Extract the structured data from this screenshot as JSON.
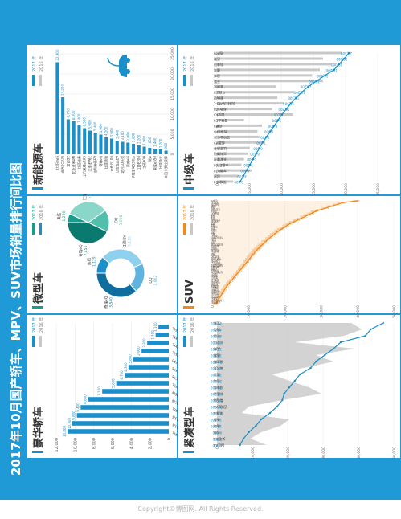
{
  "page": {
    "title": "2017年10月国产轿车、MPV、SUV市场销量排行间比图",
    "copyright": "Copyright©博图网. All Rights Reserved.",
    "year_current": "2017 年",
    "year_prev": "2016 年"
  },
  "colors": {
    "banner": "#1f9ad6",
    "blue": "#1b8fc9",
    "blue_light": "#8fd0ef",
    "orange": "#f18a1f",
    "gray": "#c8c8c8",
    "teal": "#159e8f",
    "teal_light": "#8ad6c8"
  },
  "chart_data": [
    {
      "id": "luxury",
      "title": "豪华轿车",
      "type": "bar",
      "ylim": [
        0,
        12000
      ],
      "ticks": [
        0,
        2000,
        4000,
        6000,
        8000,
        10000,
        12000
      ],
      "categories": [
        "奥迪A4L",
        "宝马5系",
        "宝马3系",
        "奥迪A6L",
        "奔驰C级",
        "奔驰E级",
        "凯迪拉克ATSL",
        "凯迪拉克CT6",
        "凯迪拉克XTS",
        "沃尔沃S90",
        "英菲尼迪Q50L",
        "捷豹XFL",
        "捷豹XEL",
        "沃尔沃S60L"
      ],
      "series": [
        {
          "name": "2017 年",
          "values": [
            10800,
            10300,
            9800,
            9400,
            8600,
            7100,
            5600,
            4700,
            4300,
            3800,
            2900,
            2300,
            1400,
            1100
          ]
        }
      ]
    },
    {
      "id": "micro",
      "title": "微型车",
      "type": "pie",
      "legend": [
        "2017 年",
        "2016 年"
      ],
      "series": [
        {
          "name": "2017 年",
          "slices": [
            {
              "label": "奥拓",
              "value": 1129
            },
            {
              "label": "江淮iEV",
              "value": 3119
            },
            {
              "label": "QQ",
              "value": 1962
            },
            {
              "label": "奇瑞eQ",
              "value": 3540
            }
          ]
        },
        {
          "name": "2016 年",
          "slices": [
            {
              "label": "奥拓",
              "value": 1226
            },
            {
              "label": "江淮iEV",
              "value": 5779
            },
            {
              "label": "QQ",
              "value": 3006
            },
            {
              "label": "奇瑞eQ",
              "value": 7451
            }
          ]
        }
      ]
    },
    {
      "id": "nev",
      "title": "新能源车",
      "type": "bar",
      "xlim": [
        0,
        25000
      ],
      "ticks": [
        0,
        5000,
        10000,
        15000,
        20000,
        25000
      ],
      "categories": [
        "比亚迪e5",
        "北汽EC系列",
        "知豆D2",
        "比亚迪宋DM",
        "比亚迪秦",
        "上汽荣威eRX5",
        "江淮iEV6E",
        "吉利帝豪EV",
        "奇瑞eQ",
        "比亚迪唐",
        "众泰云100",
        "长安逸动EV",
        "北汽EU系列",
        "荣威ei6",
        "华晨宝马530Le",
        "江铃E200",
        "之诺60H",
        "腾势",
        "荣威e550",
        "比亚迪元",
        "丰田卡罗拉双擎"
      ],
      "series": [
        {
          "name": "2017 年",
          "values": [
            22900,
            14200,
            8700,
            8200,
            7400,
            6500,
            5900,
            5400,
            4900,
            4200,
            3900,
            3400,
            3100,
            2900,
            2600,
            2200,
            1900,
            1600,
            1400,
            1200,
            900
          ]
        }
      ]
    },
    {
      "id": "compact",
      "title": "紧凑型车",
      "type": "line",
      "ylim": [
        0,
        50000
      ],
      "ticks": [
        0,
        10000,
        20000,
        30000,
        40000,
        50000
      ],
      "categories": [
        "宝来",
        "朗逸",
        "轩逸",
        "卡罗拉",
        "英朗",
        "速腾",
        "福克斯",
        "高尔夫",
        "雷凌",
        "思域",
        "科鲁兹",
        "新捷达",
        "桑塔纳",
        "迈锐宝XL",
        "荣威i6",
        "帝豪",
        "逸动",
        "名图",
        "艾瑞泽5",
        "起亚K3"
      ],
      "series": [
        {
          "name": "2017 年",
          "values": [
            47000,
            43500,
            42000,
            35000,
            33000,
            30500,
            28000,
            26500,
            23500,
            22000,
            20500,
            19000,
            18500,
            17000,
            15000,
            12500,
            11000,
            9000,
            7500,
            6500
          ]
        },
        {
          "name": "2016 年",
          "values": [
            38000,
            41000,
            36000,
            22000,
            39000,
            28000,
            33000,
            24500,
            15500,
            20500,
            26000,
            29500,
            18500,
            9000,
            7000,
            20500,
            18000,
            12500,
            9500,
            14000
          ]
        }
      ]
    },
    {
      "id": "suv",
      "title": "SUV",
      "type": "line",
      "ylim": [
        0,
        50000
      ],
      "ticks": [
        0,
        10000,
        20000,
        30000,
        40000,
        50000
      ],
      "categories": [
        "哈弗H6",
        "宝骏510",
        "传祺GS4",
        "途观L",
        "博越",
        "长安CS75",
        "昂科威",
        "荣威RX5",
        "CR-V",
        "奇骏",
        "逍客",
        "长安CS55",
        "宝骏560",
        "缤智",
        "探歌",
        "哈弗H2",
        "途昂",
        "汉兰达",
        "XR-V",
        "翼虎",
        "森雅R7",
        "吉利远景SUV",
        "瑞虎7",
        "RAV4",
        "荣放",
        "东风风光580",
        "本田冠道",
        "昂科拉",
        "传祺GS8",
        "奔腾X40",
        "BJ40",
        "锐界",
        "东南DX7",
        "雪佛兰创酷",
        "海马S5",
        "长安CS35",
        "马自达CX-4",
        "雪佛兰探界者",
        "福特翼博",
        "科雷傲",
        "大众途岳",
        "北汽绅宝X35",
        "瑞风S3",
        "宝马X1",
        "奥迪Q5",
        "哈弗H2s",
        "启辰T70",
        "众泰T600",
        "长城M6",
        "比亚迪宋",
        "陆风X7",
        "宝沃BX5",
        "纳智捷U5",
        "开瑞K60",
        "昌河Q35",
        "野马T70",
        "凯翼X5",
        "东风风行S560",
        "猎豹CS10",
        "斯威X7"
      ],
      "series": [
        {
          "name": "2017 年",
          "values": [
            40000,
            36000,
            34500,
            33000,
            31500,
            30000,
            28500,
            27500,
            26500,
            25500,
            24500,
            23500,
            22500,
            21500,
            20700,
            20000,
            19200,
            18500,
            17800,
            17200,
            16600,
            16000,
            15400,
            14900,
            14400,
            13900,
            13400,
            12900,
            12400,
            12000,
            11600,
            11200,
            10800,
            10400,
            10000,
            9600,
            9200,
            8800,
            8400,
            8000,
            7600,
            7200,
            6800,
            6400,
            6000,
            5600,
            5200,
            4800,
            4400,
            4000,
            3700,
            3400,
            3100,
            2800,
            2500,
            2200,
            1900,
            1600,
            1300,
            1000
          ]
        }
      ]
    },
    {
      "id": "mid",
      "title": "中级车",
      "type": "line",
      "ylim": [
        0,
        25000
      ],
      "ticks": [
        0,
        5000,
        10000,
        15000,
        20000,
        25000
      ],
      "categories": [
        "帕萨特",
        "迈腾",
        "凯美瑞",
        "雅阁",
        "君威",
        "天籁",
        "蒙迪欧",
        "马自达6",
        "索纳塔",
        "凯迪拉克ATS-L",
        "标致508",
        "起亚K5",
        "雪铁龙C6",
        "名爵6",
        "传祺GA6",
        "福特金牛座",
        "红旗H5",
        "比亚迪秦",
        "吉利博瑞",
        "长安睿骋",
        "众泰Z700",
        "奔腾B70",
        "君越",
        "荣威950"
      ],
      "series": [
        {
          "name": "2017 年",
          "values": [
            20500,
            19800,
            19000,
            18200,
            16800,
            15500,
            14200,
            13200,
            12300,
            11500,
            10800,
            10100,
            9500,
            8900,
            8300,
            7700,
            7100,
            6600,
            6100,
            5600,
            5100,
            4600,
            4100,
            3600
          ]
        },
        {
          "name": "2016 年",
          "values": [
            19500,
            16500,
            17800,
            16000,
            14800,
            16500,
            9200,
            12000,
            9400,
            10500,
            8600,
            11800,
            4200,
            7000,
            6300,
            6600,
            6900,
            5100,
            4800,
            4200,
            3800,
            5500,
            3500,
            2500
          ]
        }
      ]
    }
  ]
}
